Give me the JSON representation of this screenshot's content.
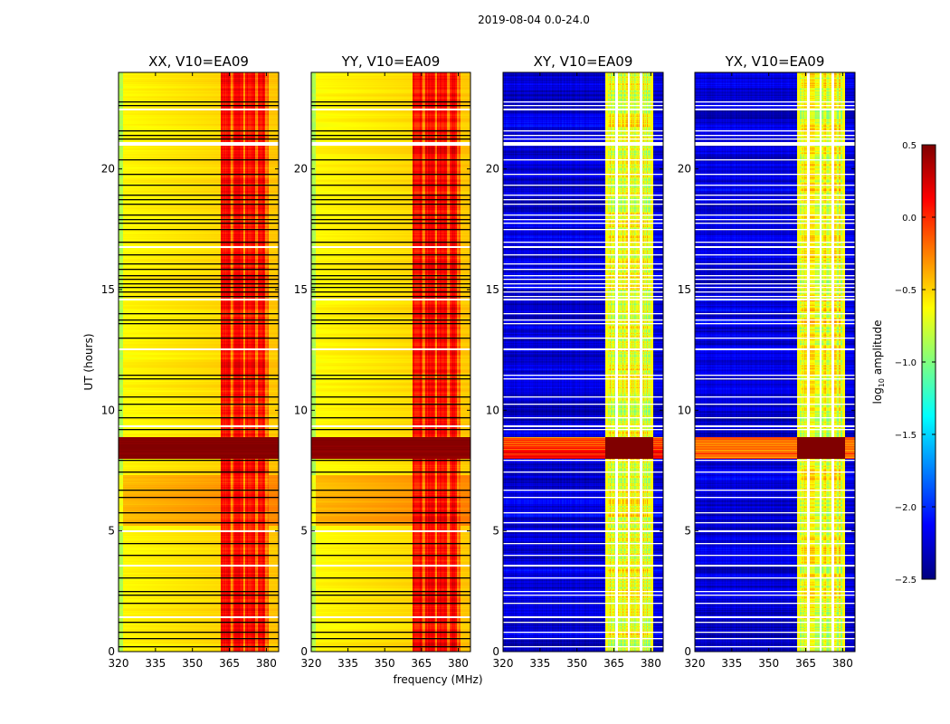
{
  "chart_data": {
    "type": "heatmap",
    "title": "2019-08-04 0.0-24.0",
    "panels": [
      {
        "title": "XX, V10=EA09",
        "kind": "parallel"
      },
      {
        "title": "YY, V10=EA09",
        "kind": "parallel"
      },
      {
        "title": "XY, V10=EA09",
        "kind": "cross"
      },
      {
        "title": "YX, V10=EA09",
        "kind": "cross"
      }
    ],
    "xlabel": "frequency (MHz)",
    "ylabel": "UT (hours)",
    "xlim": [
      320,
      385
    ],
    "ylim": [
      0,
      24
    ],
    "xticks": [
      "320",
      "335",
      "350",
      "365",
      "380"
    ],
    "xtick_values": [
      320,
      335,
      350,
      365,
      380
    ],
    "yticks": [
      "0",
      "5",
      "10",
      "15",
      "20"
    ],
    "ytick_values": [
      0,
      5,
      10,
      15,
      20
    ],
    "colorbar": {
      "label_prefix": "log",
      "label_sub": "10",
      "label_suffix": " amplitude",
      "range": [
        -2.5,
        0.5
      ],
      "ticks": [
        "0.5",
        "0.0",
        "−0.5",
        "−1.0",
        "−1.5",
        "−2.0",
        "−2.5"
      ],
      "tick_values": [
        0.5,
        0.0,
        -0.5,
        -1.0,
        -1.5,
        -2.0,
        -2.5
      ],
      "colormap": "jet"
    },
    "flagged_black_hours": [
      22.81,
      22.66,
      21.61,
      21.43,
      21.28,
      20.41,
      19.81,
      19.36,
      18.95,
      18.76,
      18.57,
      18.12,
      17.94,
      17.79,
      17.52,
      17.0,
      16.47,
      16.1,
      15.87,
      15.61,
      15.46,
      15.27,
      15.12,
      14.93,
      14.75,
      14.03,
      13.77,
      13.62,
      13.02,
      11.48,
      11.33,
      10.58,
      10.28,
      9.72,
      9.23,
      7.95,
      7.47,
      6.72,
      6.42,
      5.78,
      5.37,
      4.5,
      4.01,
      3.08,
      2.51,
      2.36,
      2.03,
      1.24,
      0.83,
      0.56,
      0.23
    ],
    "flagged_white_hours": [
      22.48,
      21.09,
      16.77,
      14.6,
      12.53,
      9.34,
      4.99,
      3.56,
      1.43
    ],
    "high_amplitude_hours": [
      8.0,
      8.9
    ],
    "elevated_parallel_hours": [
      5.2,
      7.3
    ],
    "rfi_band_mhz": [
      361.5,
      381
    ],
    "subband_gaps_mhz": [
      366,
      371,
      376
    ],
    "parallel_base_log_amp": -0.5,
    "cross_base_log_amp": -2.25,
    "band_parallel_log_amp": 0.1,
    "band_cross_log_amp": -0.7
  }
}
